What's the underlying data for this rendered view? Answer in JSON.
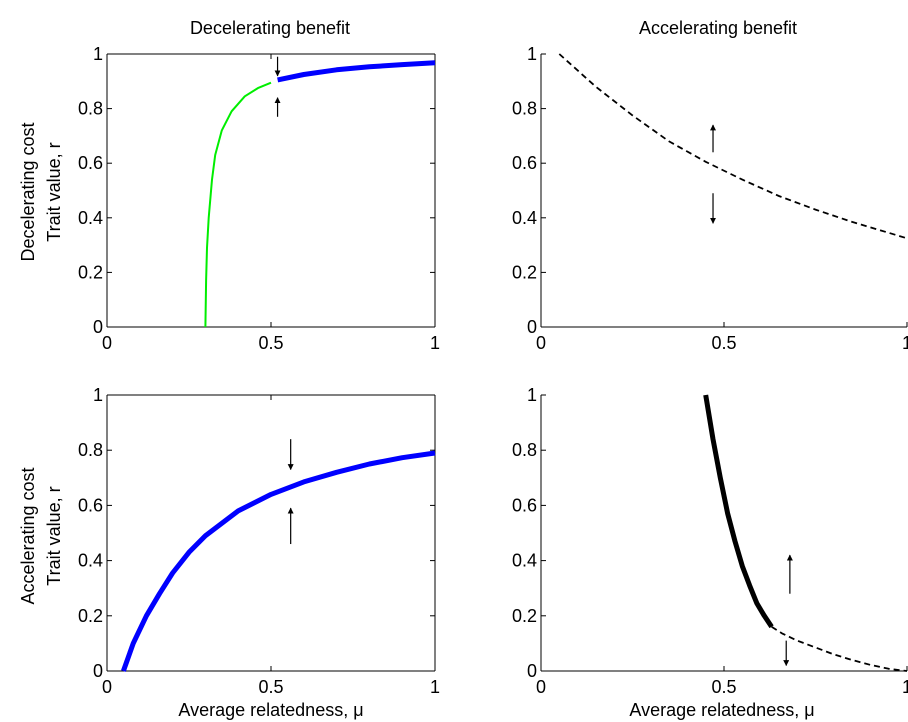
{
  "column_titles": [
    "Decelerating benefit",
    "Accelerating benefit"
  ],
  "row_labels": [
    "Decelerating cost",
    "Accelerating cost"
  ],
  "y_axis_label": "Trait value, r",
  "x_axis_label": "Average relatedness, μ",
  "colors": {
    "stable": "#0000ff",
    "transient": "#00ee00",
    "unstable_thick": "#000000",
    "unstable_dashed": "#000000"
  },
  "chart_data": [
    {
      "type": "line",
      "column_title": "Decelerating benefit",
      "row_label": "Decelerating cost",
      "xlim": [
        0,
        1
      ],
      "ylim": [
        0,
        1
      ],
      "xticks": [
        0,
        0.5,
        1
      ],
      "yticks": [
        0,
        0.2,
        0.4,
        0.6,
        0.8,
        1
      ],
      "xtick_labels": [
        "0",
        "0.5",
        "1"
      ],
      "ytick_labels": [
        "0",
        "0.2",
        "0.4",
        "0.6",
        "0.8",
        "1"
      ],
      "grid": false,
      "series": [
        {
          "style": "solid-thin",
          "color": "#00ee00",
          "x": [
            0.3,
            0.302,
            0.305,
            0.31,
            0.32,
            0.33,
            0.35,
            0.38,
            0.42,
            0.46,
            0.5
          ],
          "y": [
            0.0,
            0.17,
            0.29,
            0.4,
            0.54,
            0.63,
            0.72,
            0.79,
            0.845,
            0.875,
            0.895
          ]
        },
        {
          "style": "solid-thick",
          "color": "#0000ff",
          "x": [
            0.52,
            0.6,
            0.7,
            0.8,
            0.9,
            1.0
          ],
          "y": [
            0.905,
            0.925,
            0.942,
            0.953,
            0.961,
            0.968
          ]
        }
      ],
      "arrows": [
        {
          "x": 0.52,
          "y_from": 0.99,
          "y_to": 0.92
        },
        {
          "x": 0.52,
          "y_from": 0.77,
          "y_to": 0.84
        }
      ]
    },
    {
      "type": "line",
      "column_title": "Accelerating benefit",
      "row_label": "Decelerating cost",
      "xlim": [
        0,
        1
      ],
      "ylim": [
        0,
        1
      ],
      "xticks": [
        0,
        0.5,
        1
      ],
      "yticks": [
        0,
        0.2,
        0.4,
        0.6,
        0.8,
        1
      ],
      "xtick_labels": [
        "0",
        "0.5",
        "1"
      ],
      "ytick_labels": [
        "0",
        "0.2",
        "0.4",
        "0.6",
        "0.8",
        "1"
      ],
      "grid": false,
      "series": [
        {
          "style": "dashed",
          "color": "#000000",
          "x": [
            0.05,
            0.15,
            0.25,
            0.35,
            0.45,
            0.55,
            0.65,
            0.75,
            0.85,
            0.95,
            1.0
          ],
          "y": [
            1.0,
            0.88,
            0.775,
            0.68,
            0.605,
            0.54,
            0.48,
            0.43,
            0.385,
            0.345,
            0.325
          ]
        }
      ],
      "arrows": [
        {
          "x": 0.47,
          "y_from": 0.64,
          "y_to": 0.74
        },
        {
          "x": 0.47,
          "y_from": 0.49,
          "y_to": 0.38
        }
      ]
    },
    {
      "type": "line",
      "column_title": "Decelerating benefit",
      "row_label": "Accelerating cost",
      "xlim": [
        0,
        1
      ],
      "ylim": [
        0,
        1
      ],
      "xticks": [
        0,
        0.5,
        1
      ],
      "yticks": [
        0,
        0.2,
        0.4,
        0.6,
        0.8,
        1
      ],
      "xtick_labels": [
        "0",
        "0.5",
        "1"
      ],
      "ytick_labels": [
        "0",
        "0.2",
        "0.4",
        "0.6",
        "0.8",
        "1"
      ],
      "grid": false,
      "series": [
        {
          "style": "solid-thick",
          "color": "#0000ff",
          "x": [
            0.05,
            0.08,
            0.12,
            0.16,
            0.2,
            0.25,
            0.3,
            0.4,
            0.5,
            0.6,
            0.7,
            0.8,
            0.9,
            1.0
          ],
          "y": [
            0.0,
            0.1,
            0.2,
            0.28,
            0.355,
            0.43,
            0.49,
            0.58,
            0.64,
            0.685,
            0.72,
            0.75,
            0.773,
            0.79
          ]
        }
      ],
      "arrows": [
        {
          "x": 0.56,
          "y_from": 0.84,
          "y_to": 0.73
        },
        {
          "x": 0.56,
          "y_from": 0.46,
          "y_to": 0.59
        }
      ]
    },
    {
      "type": "line",
      "column_title": "Accelerating benefit",
      "row_label": "Accelerating cost",
      "xlim": [
        0,
        1
      ],
      "ylim": [
        0,
        1
      ],
      "xticks": [
        0,
        0.5,
        1
      ],
      "yticks": [
        0,
        0.2,
        0.4,
        0.6,
        0.8,
        1
      ],
      "xtick_labels": [
        "0",
        "0.5",
        "1"
      ],
      "ytick_labels": [
        "0",
        "0.2",
        "0.4",
        "0.6",
        "0.8",
        "1"
      ],
      "grid": false,
      "series": [
        {
          "style": "solid-thick",
          "color": "#000000",
          "x": [
            0.45,
            0.47,
            0.49,
            0.51,
            0.53,
            0.55,
            0.57,
            0.59,
            0.61,
            0.63
          ],
          "y": [
            1.0,
            0.84,
            0.7,
            0.57,
            0.47,
            0.38,
            0.31,
            0.245,
            0.2,
            0.16
          ]
        },
        {
          "style": "dashed",
          "color": "#000000",
          "x": [
            0.63,
            0.66,
            0.7,
            0.75,
            0.8,
            0.85,
            0.9,
            0.95,
            1.0
          ],
          "y": [
            0.16,
            0.135,
            0.11,
            0.085,
            0.06,
            0.04,
            0.022,
            0.008,
            0.0
          ]
        }
      ],
      "arrows": [
        {
          "x": 0.68,
          "y_from": 0.28,
          "y_to": 0.42
        },
        {
          "x": 0.67,
          "y_from": 0.11,
          "y_to": 0.02
        }
      ]
    }
  ]
}
